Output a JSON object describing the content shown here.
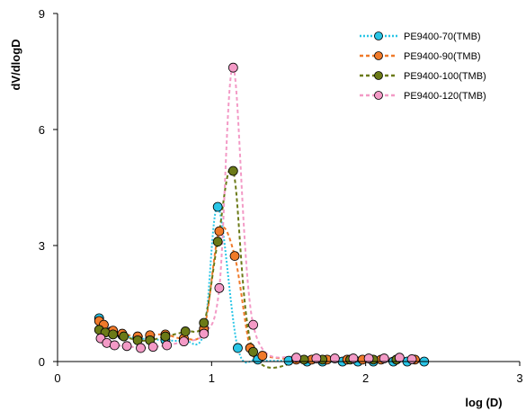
{
  "chart_data": {
    "type": "line",
    "title": "",
    "xlabel": "log (D)",
    "ylabel": "dV/dlogD",
    "xlim": [
      0,
      3
    ],
    "ylim": [
      0,
      9
    ],
    "xticks": [
      0,
      1,
      2,
      3
    ],
    "yticks": [
      0,
      3,
      6,
      9
    ],
    "xtick_labels": [
      "0",
      "1",
      "2",
      "3"
    ],
    "ytick_labels": [
      "0",
      "3",
      "6",
      "9"
    ],
    "grid": false,
    "legend_position": "top-right",
    "series": [
      {
        "name": "PE9400-70(TMB)",
        "line_color": "#29c5e6",
        "marker_color": "#29c5e6",
        "line_style": "dotted",
        "points": [
          [
            0.27,
            1.12
          ],
          [
            0.3,
            0.95
          ],
          [
            0.35,
            0.78
          ],
          [
            0.42,
            0.68
          ],
          [
            0.52,
            0.6
          ],
          [
            0.6,
            0.58
          ],
          [
            0.7,
            0.55
          ],
          [
            0.82,
            0.55
          ],
          [
            0.95,
            0.75
          ],
          [
            1.04,
            4.0
          ],
          [
            1.17,
            0.35
          ],
          [
            1.3,
            0.05
          ],
          [
            1.5,
            0.02
          ],
          [
            1.62,
            0.0
          ],
          [
            1.72,
            0.0
          ],
          [
            1.85,
            0.0
          ],
          [
            1.95,
            0.0
          ],
          [
            2.05,
            0.0
          ],
          [
            2.18,
            0.0
          ],
          [
            2.27,
            0.0
          ],
          [
            2.38,
            0.0
          ]
        ]
      },
      {
        "name": "PE9400-90(TMB)",
        "line_color": "#f07a2a",
        "marker_color": "#f07a2a",
        "line_style": "dashed",
        "points": [
          [
            0.27,
            1.05
          ],
          [
            0.3,
            0.95
          ],
          [
            0.36,
            0.8
          ],
          [
            0.42,
            0.72
          ],
          [
            0.52,
            0.65
          ],
          [
            0.6,
            0.68
          ],
          [
            0.7,
            0.7
          ],
          [
            0.82,
            0.6
          ],
          [
            0.95,
            0.85
          ],
          [
            1.05,
            3.37
          ],
          [
            1.15,
            2.73
          ],
          [
            1.25,
            0.35
          ],
          [
            1.33,
            0.15
          ],
          [
            1.55,
            0.05
          ],
          [
            1.65,
            0.05
          ],
          [
            1.75,
            0.05
          ],
          [
            1.88,
            0.05
          ],
          [
            1.98,
            0.05
          ],
          [
            2.1,
            0.05
          ],
          [
            2.2,
            0.05
          ],
          [
            2.32,
            0.05
          ]
        ]
      },
      {
        "name": "PE9400-100(TMB)",
        "line_color": "#6b7a17",
        "marker_color": "#6b7a17",
        "line_style": "dashed",
        "points": [
          [
            0.27,
            0.82
          ],
          [
            0.31,
            0.75
          ],
          [
            0.36,
            0.7
          ],
          [
            0.43,
            0.65
          ],
          [
            0.52,
            0.55
          ],
          [
            0.6,
            0.55
          ],
          [
            0.7,
            0.65
          ],
          [
            0.83,
            0.78
          ],
          [
            0.95,
            1.0
          ],
          [
            1.04,
            3.1
          ],
          [
            1.14,
            4.93
          ],
          [
            1.27,
            0.25
          ],
          [
            1.6,
            0.05
          ],
          [
            1.72,
            0.05
          ],
          [
            1.9,
            0.05
          ],
          [
            2.05,
            0.05
          ],
          [
            2.2,
            0.05
          ]
        ]
      },
      {
        "name": "PE9400-120(TMB)",
        "line_color": "#f39ac6",
        "marker_color": "#f39ac6",
        "line_style": "dashed",
        "points": [
          [
            0.28,
            0.6
          ],
          [
            0.32,
            0.48
          ],
          [
            0.37,
            0.42
          ],
          [
            0.45,
            0.4
          ],
          [
            0.54,
            0.35
          ],
          [
            0.62,
            0.38
          ],
          [
            0.71,
            0.42
          ],
          [
            0.82,
            0.52
          ],
          [
            0.95,
            0.72
          ],
          [
            1.05,
            1.9
          ],
          [
            1.14,
            7.6
          ],
          [
            1.27,
            0.95
          ],
          [
            1.55,
            0.1
          ],
          [
            1.68,
            0.08
          ],
          [
            1.8,
            0.08
          ],
          [
            1.92,
            0.08
          ],
          [
            2.02,
            0.08
          ],
          [
            2.12,
            0.08
          ],
          [
            2.22,
            0.1
          ],
          [
            2.3,
            0.06
          ]
        ]
      }
    ]
  }
}
